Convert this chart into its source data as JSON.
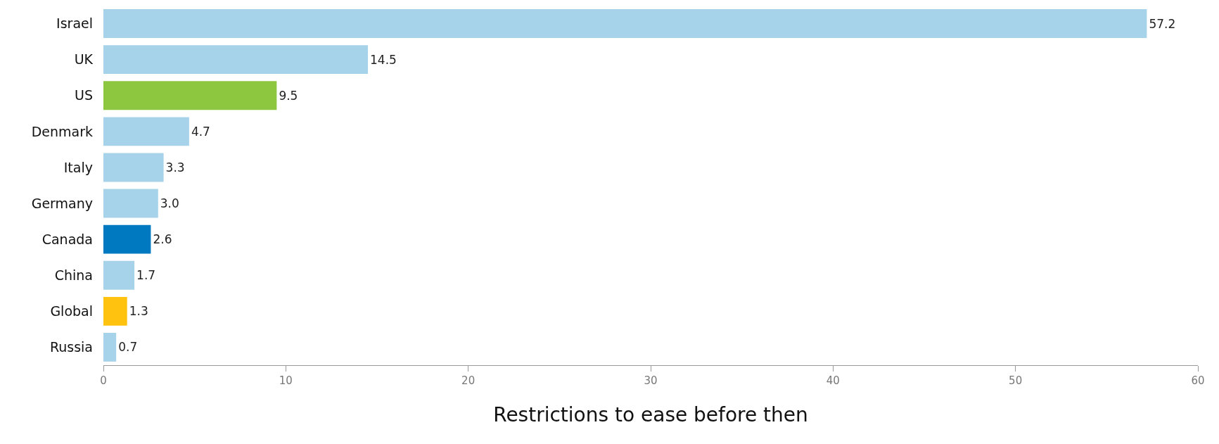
{
  "chart_data": {
    "type": "bar",
    "orientation": "horizontal",
    "xlabel": "Restrictions to ease before then",
    "categories": [
      "Israel",
      "UK",
      "US",
      "Denmark",
      "Italy",
      "Germany",
      "Canada",
      "China",
      "Global",
      "Russia"
    ],
    "values": [
      57.2,
      14.5,
      9.5,
      4.7,
      3.3,
      3.0,
      2.6,
      1.7,
      1.3,
      0.7
    ],
    "value_labels": [
      "57.2",
      "14.5",
      "9.5",
      "4.7",
      "3.3",
      "3.0",
      "2.6",
      "1.7",
      "1.3",
      "0.7"
    ],
    "colors": [
      "#a7d3ea",
      "#a7d3ea",
      "#8dc63f",
      "#a7d3ea",
      "#a7d3ea",
      "#a7d3ea",
      "#0079c1",
      "#a7d3ea",
      "#ffc20e",
      "#a7d3ea"
    ],
    "xlim": [
      0,
      60
    ],
    "xticks": [
      0,
      10,
      20,
      30,
      40,
      50,
      60
    ],
    "grid": false
  }
}
